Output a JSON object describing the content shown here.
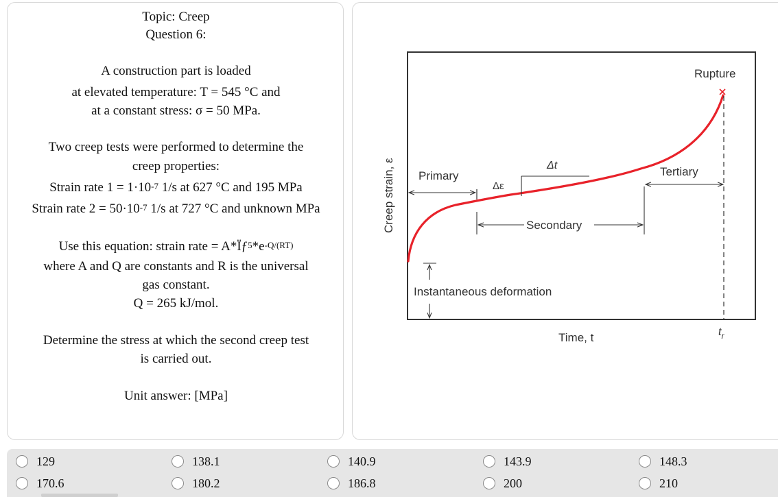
{
  "question": {
    "topic": "Topic: Creep",
    "number": "Question 6:",
    "lines": [
      "A construction part is loaded",
      "at elevated temperature: T = 545 °C and",
      "at a constant stress: σ = 50 MPa.",
      "Two creep tests were performed to determine the",
      "creep properties:"
    ],
    "rate1_prefix": "Strain rate 1 = 1·10",
    "rate1_exp": "-7",
    "rate1_suffix": " 1/s at 627 °C and 195 MPa",
    "rate2_prefix": "Strain rate 2 = 50·10",
    "rate2_exp": "-7",
    "rate2_suffix": " 1/s at 727 °C and unknown MPa",
    "eq_prefix": "Use this equation: strain rate = A*Ïƒ",
    "eq_exp1": "5",
    "eq_mid": "*e",
    "eq_exp2": "-Q/(RT)",
    "lines2": [
      "where A and Q are constants and R is the universal",
      "gas constant.",
      "Q = 265 kJ/mol.",
      "Determine the stress at which the second creep test",
      "is carried out.",
      "Unit answer: [MPa]"
    ]
  },
  "figure": {
    "labels": {
      "rupture": "Rupture",
      "primary": "Primary",
      "secondary": "Secondary",
      "tertiary": "Tertiary",
      "delta_t": "Δt",
      "delta_e": "Δε",
      "instantaneous": "Instantaneous deformation",
      "xlabel": "Time, t",
      "ylabel": "Creep strain, ε",
      "tr": "t",
      "tr_sub": "r"
    },
    "curve_color": "#e8222a"
  },
  "answers": [
    [
      "129",
      "138.1",
      "140.9",
      "143.9",
      "148.3"
    ],
    [
      "170.6",
      "180.2",
      "186.8",
      "200",
      "210"
    ]
  ]
}
